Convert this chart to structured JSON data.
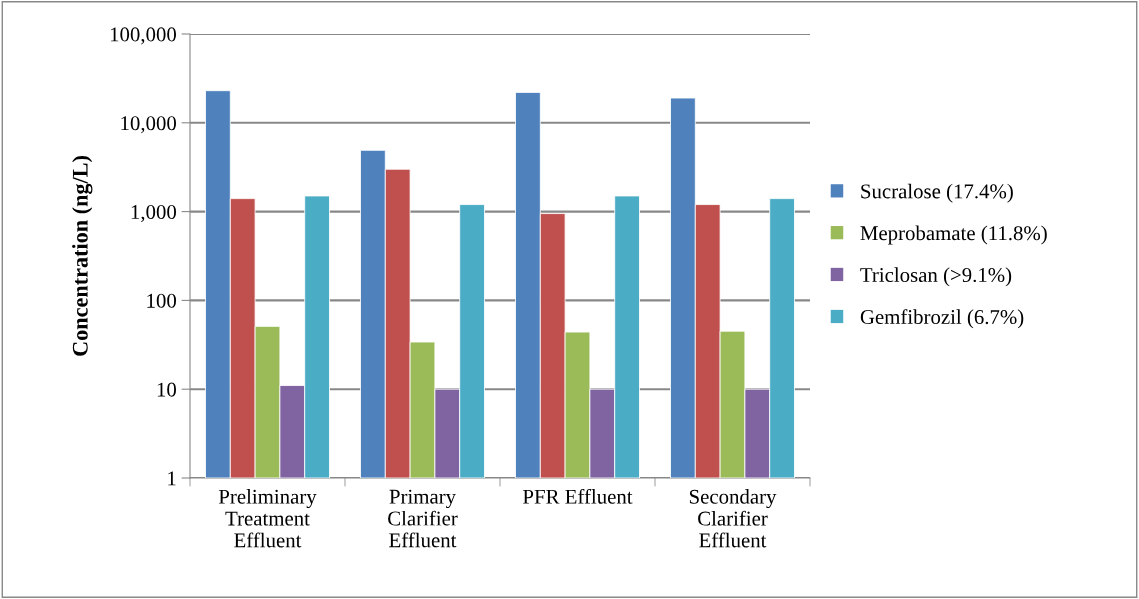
{
  "chart_data": {
    "type": "bar",
    "ylabel": "Concentration (ng/L)",
    "categories": [
      "Preliminary\nTreatment\nEffluent",
      "Primary\nClarifier\nEffluent",
      "PFR Effluent",
      "Secondary\nClarifier\nEffluent"
    ],
    "series": [
      {
        "name": "Sucralose (17.4%)",
        "color": "#4f81bd",
        "values": [
          23000,
          4900,
          22000,
          19000
        ]
      },
      {
        "color": "#c0504d",
        "values": [
          1400,
          3000,
          950,
          1200
        ]
      },
      {
        "name": "Meprobamate (11.8%)",
        "color": "#9bbb59",
        "values": [
          51,
          34,
          44,
          45
        ]
      },
      {
        "name": "Triclosan (>9.1%)",
        "color": "#8064a2",
        "values": [
          11,
          10,
          10,
          10
        ]
      },
      {
        "name": "Gemfibrozil (6.7%)",
        "color": "#4bacc6",
        "values": [
          1500,
          1200,
          1500,
          1400
        ]
      }
    ],
    "log": "y",
    "ylim": [
      1,
      100000
    ],
    "yticks": [
      1,
      10,
      {
        "value": 100,
        "label": "100"
      },
      {
        "value": 1000,
        "label": "1,000"
      },
      {
        "value": 10000,
        "label": "10,000"
      },
      {
        "value": 100000,
        "label": "100,000"
      }
    ],
    "grid": "y",
    "legend": "right"
  }
}
